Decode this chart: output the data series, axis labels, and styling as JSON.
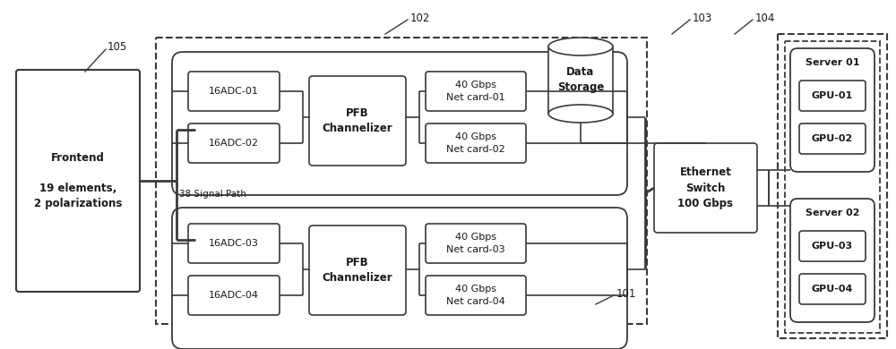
{
  "bg_color": "#ffffff",
  "line_color": "#3a3a3a",
  "font_color": "#1a1a1a",
  "labels": {
    "frontend": "Frontend\n\n19 elements,\n2 polarizations",
    "signal_path": "38 Signal Path",
    "adc01": "16ADC-01",
    "adc02": "16ADC-02",
    "adc03": "16ADC-03",
    "adc04": "16ADC-04",
    "pfb1": "PFB\nChannelizer",
    "pfb2": "PFB\nChannelizer",
    "net01": "40 Gbps\nNet card-01",
    "net02": "40 Gbps\nNet card-02",
    "net03": "40 Gbps\nNet card-03",
    "net04": "40 Gbps\nNet card-04",
    "ethernet": "Ethernet\nSwitch\n100 Gbps",
    "data_storage": "Data\nStorage",
    "server01": "Server 01",
    "server02": "Server 02",
    "gpu01": "GPU-01",
    "gpu02": "GPU-02",
    "gpu03": "GPU-03",
    "gpu04": "GPU-04",
    "ref102": "102",
    "ref103": "103",
    "ref104": "104",
    "ref105": "105",
    "ref101": "101"
  }
}
